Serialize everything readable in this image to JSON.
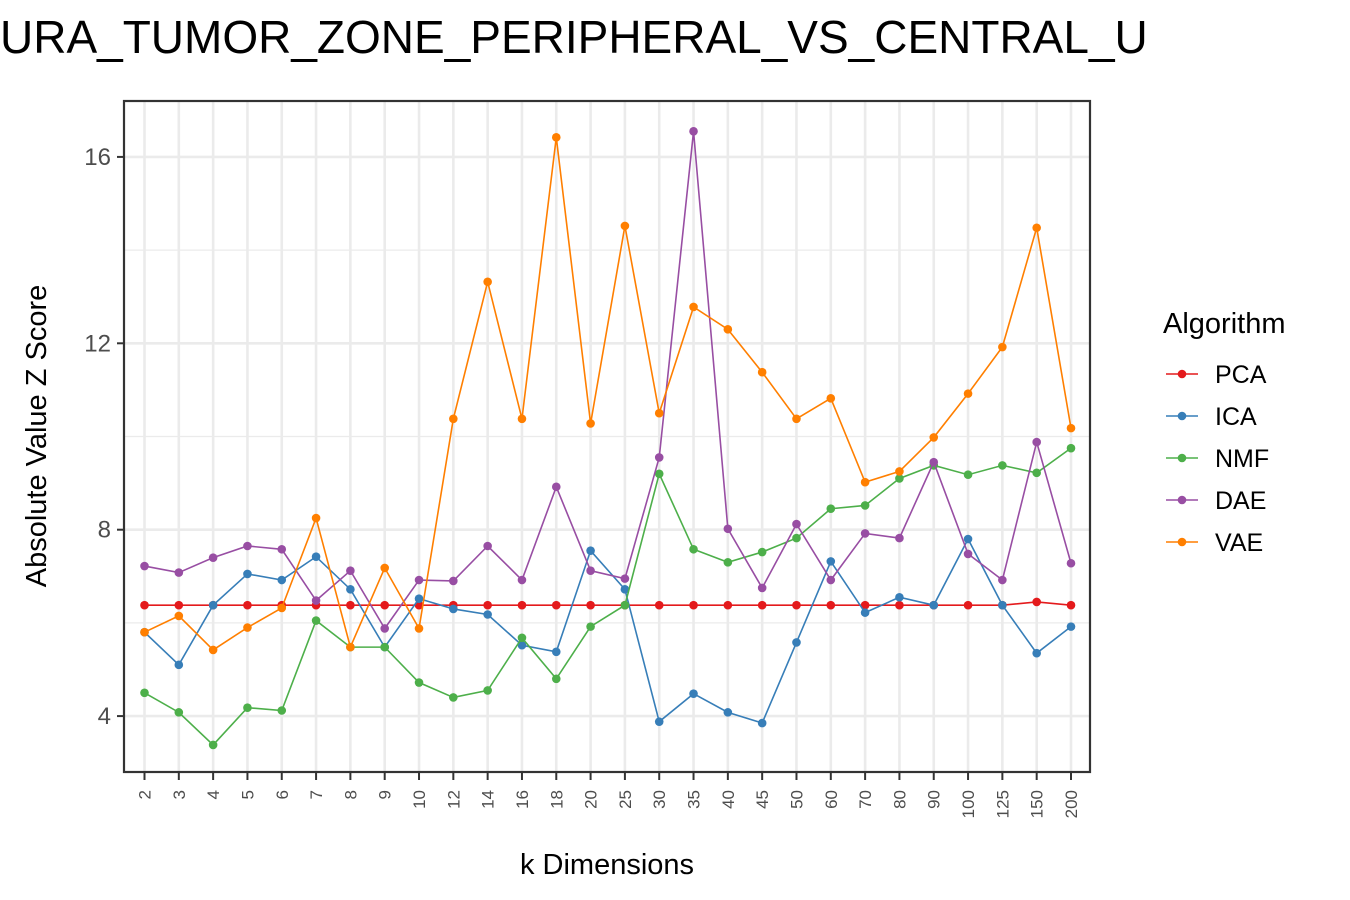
{
  "chart_data": {
    "type": "line",
    "title": "URA_TUMOR_ZONE_PERIPHERAL_VS_CENTRAL_U",
    "xlabel": "k Dimensions",
    "ylabel": "Absolute Value Z Score",
    "categories": [
      "2",
      "3",
      "4",
      "5",
      "6",
      "7",
      "8",
      "9",
      "10",
      "12",
      "14",
      "16",
      "18",
      "20",
      "25",
      "30",
      "35",
      "40",
      "45",
      "50",
      "60",
      "70",
      "80",
      "90",
      "100",
      "125",
      "150",
      "200"
    ],
    "yticks": [
      4,
      8,
      12,
      16
    ],
    "ylim": [
      2.8,
      17.2
    ],
    "grid": true,
    "legend": {
      "title": "Algorithm",
      "position": "right"
    },
    "series": [
      {
        "name": "PCA",
        "color": "#e41a1c",
        "values": [
          6.38,
          6.38,
          6.38,
          6.38,
          6.38,
          6.38,
          6.38,
          6.38,
          6.38,
          6.38,
          6.38,
          6.38,
          6.38,
          6.38,
          6.38,
          6.38,
          6.38,
          6.38,
          6.38,
          6.38,
          6.38,
          6.38,
          6.38,
          6.38,
          6.38,
          6.38,
          6.45,
          6.38
        ]
      },
      {
        "name": "ICA",
        "color": "#377eb8",
        "values": [
          5.8,
          5.1,
          6.38,
          7.05,
          6.92,
          7.42,
          6.72,
          5.48,
          6.52,
          6.3,
          6.18,
          5.52,
          5.38,
          7.55,
          6.72,
          3.88,
          4.48,
          4.08,
          3.85,
          5.58,
          7.32,
          6.22,
          6.55,
          6.38,
          7.8,
          6.38,
          5.35,
          5.92
        ]
      },
      {
        "name": "NMF",
        "color": "#4daf4a",
        "values": [
          4.5,
          4.08,
          3.38,
          4.18,
          4.12,
          6.05,
          5.48,
          5.48,
          4.72,
          4.4,
          4.55,
          5.68,
          4.8,
          5.92,
          6.38,
          9.2,
          7.58,
          7.3,
          7.52,
          7.82,
          8.45,
          8.52,
          9.1,
          9.38,
          9.18,
          9.38,
          9.22,
          9.75
        ]
      },
      {
        "name": "DAE",
        "color": "#984ea3",
        "values": [
          7.22,
          7.08,
          7.4,
          7.65,
          7.58,
          6.48,
          7.12,
          5.88,
          6.92,
          6.9,
          7.65,
          6.92,
          8.92,
          7.12,
          6.95,
          9.55,
          16.55,
          8.02,
          6.75,
          8.12,
          6.92,
          7.92,
          7.82,
          9.45,
          7.48,
          6.92,
          9.88,
          7.28
        ]
      },
      {
        "name": "VAE",
        "color": "#ff7f00",
        "values": [
          5.8,
          6.15,
          5.42,
          5.9,
          6.32,
          8.25,
          5.48,
          7.18,
          5.88,
          10.38,
          13.32,
          10.38,
          16.42,
          10.28,
          14.52,
          10.5,
          12.78,
          12.3,
          11.38,
          10.38,
          10.82,
          9.02,
          9.25,
          9.98,
          10.92,
          11.92,
          14.48,
          10.18
        ]
      }
    ]
  }
}
